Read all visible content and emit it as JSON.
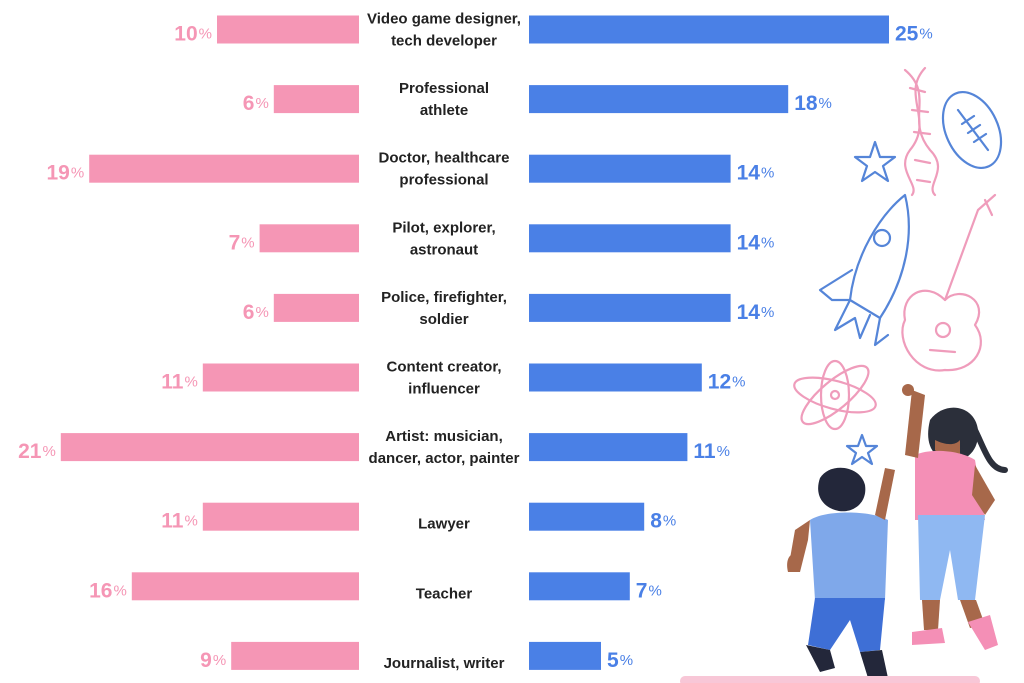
{
  "colors": {
    "left_series": "#f596b5",
    "right_series": "#4a80e6",
    "left_text": "#f596b5",
    "right_text": "#4a80e6",
    "label_text": "#222222"
  },
  "icons": [
    "dna-doodle",
    "football-doodle",
    "star-doodle",
    "rocket-doodle",
    "guitar-doodle",
    "atom-doodle",
    "kids-illustration"
  ],
  "chart_data": {
    "type": "bar",
    "orientation": "horizontal-diverging",
    "percent_suffix": "%",
    "categories": [
      {
        "line1": "Video game designer,",
        "line2": "tech developer"
      },
      {
        "line1": "Professional",
        "line2": "athlete"
      },
      {
        "line1": "Doctor, healthcare",
        "line2": "professional"
      },
      {
        "line1": "Pilot, explorer,",
        "line2": "astronaut"
      },
      {
        "line1": "Police, firefighter,",
        "line2": "soldier"
      },
      {
        "line1": "Content creator,",
        "line2": "influencer"
      },
      {
        "line1": "Artist: musician,",
        "line2": "dancer, actor, painter"
      },
      {
        "line1": "Lawyer",
        "line2": ""
      },
      {
        "line1": "Teacher",
        "line2": ""
      },
      {
        "line1": "Journalist, writer",
        "line2": ""
      }
    ],
    "series": [
      {
        "side": "left",
        "values": [
          10,
          6,
          19,
          7,
          6,
          11,
          21,
          11,
          16,
          9
        ]
      },
      {
        "side": "right",
        "values": [
          25,
          18,
          14,
          14,
          14,
          12,
          11,
          8,
          7,
          5
        ]
      }
    ]
  }
}
